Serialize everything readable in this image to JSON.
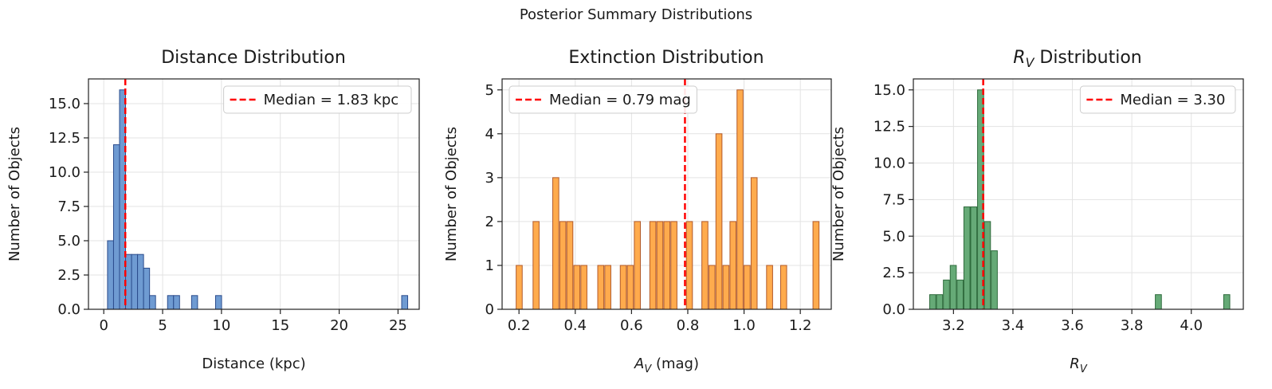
{
  "figure": {
    "title": "Posterior Summary Distributions"
  },
  "chart_data": [
    {
      "type": "bar",
      "title": "Distance Distribution",
      "xlabel": "Distance (kpc)",
      "ylabel": "Number of Objects",
      "xlim": [
        -1.3,
        26.8
      ],
      "ylim": [
        0,
        16.8
      ],
      "xticks": [
        0,
        5,
        10,
        15,
        20,
        25
      ],
      "xtick_labels": [
        "0",
        "5",
        "10",
        "15",
        "20",
        "25"
      ],
      "yticks": [
        0,
        2.5,
        5,
        7.5,
        10,
        12.5,
        15
      ],
      "ytick_labels": [
        "0.0",
        "2.5",
        "5.0",
        "7.5",
        "10.0",
        "12.5",
        "15.0"
      ],
      "bin_width": 0.51,
      "bins": [
        {
          "x": 0.32,
          "count": 5
        },
        {
          "x": 0.83,
          "count": 12
        },
        {
          "x": 1.34,
          "count": 16
        },
        {
          "x": 1.85,
          "count": 4
        },
        {
          "x": 2.36,
          "count": 4
        },
        {
          "x": 2.87,
          "count": 4
        },
        {
          "x": 3.38,
          "count": 3
        },
        {
          "x": 3.89,
          "count": 1
        },
        {
          "x": 5.42,
          "count": 1
        },
        {
          "x": 5.93,
          "count": 1
        },
        {
          "x": 7.46,
          "count": 1
        },
        {
          "x": 9.5,
          "count": 1
        },
        {
          "x": 25.31,
          "count": 1
        }
      ],
      "median": 1.83,
      "legend": "Median = 1.83 kpc",
      "legend_position": "upper right",
      "bar_color": "#6f9bd2",
      "edge_color": "#2b4c8c",
      "grid": true
    },
    {
      "type": "bar",
      "title": "Extinction Distribution",
      "xlabel": "A_V (mag)",
      "xlabel_main": "A",
      "xlabel_sub": "V",
      "xlabel_rest": " (mag)",
      "ylabel": "Number of Objects",
      "xlim": [
        0.14,
        1.31
      ],
      "ylim": [
        0,
        5.25
      ],
      "xticks": [
        0.2,
        0.4,
        0.6,
        0.8,
        1.0,
        1.2
      ],
      "xtick_labels": [
        "0.2",
        "0.4",
        "0.6",
        "0.8",
        "1.0",
        "1.2"
      ],
      "yticks": [
        0,
        1,
        2,
        3,
        4,
        5
      ],
      "ytick_labels": [
        "0",
        "1",
        "2",
        "3",
        "4",
        "5"
      ],
      "bin_width": 0.0215,
      "bins": [
        {
          "x": 0.19,
          "count": 1
        },
        {
          "x": 0.25,
          "count": 2
        },
        {
          "x": 0.32,
          "count": 3
        },
        {
          "x": 0.345,
          "count": 2
        },
        {
          "x": 0.37,
          "count": 2
        },
        {
          "x": 0.395,
          "count": 1
        },
        {
          "x": 0.42,
          "count": 1
        },
        {
          "x": 0.48,
          "count": 1
        },
        {
          "x": 0.505,
          "count": 1
        },
        {
          "x": 0.56,
          "count": 1
        },
        {
          "x": 0.585,
          "count": 1
        },
        {
          "x": 0.61,
          "count": 2
        },
        {
          "x": 0.665,
          "count": 2
        },
        {
          "x": 0.69,
          "count": 2
        },
        {
          "x": 0.715,
          "count": 2
        },
        {
          "x": 0.74,
          "count": 2
        },
        {
          "x": 0.795,
          "count": 2
        },
        {
          "x": 0.85,
          "count": 2
        },
        {
          "x": 0.875,
          "count": 1
        },
        {
          "x": 0.9,
          "count": 4
        },
        {
          "x": 0.925,
          "count": 1
        },
        {
          "x": 0.95,
          "count": 2
        },
        {
          "x": 0.975,
          "count": 5
        },
        {
          "x": 1.0,
          "count": 1
        },
        {
          "x": 1.025,
          "count": 3
        },
        {
          "x": 1.08,
          "count": 1
        },
        {
          "x": 1.13,
          "count": 1
        },
        {
          "x": 1.245,
          "count": 2
        }
      ],
      "median": 0.79,
      "legend": "Median = 0.79 mag",
      "legend_position": "upper left",
      "bar_color": "#ffab4d",
      "edge_color": "#b25a2a",
      "grid": true
    },
    {
      "type": "bar",
      "title": "R_V Distribution",
      "title_main": "R",
      "title_sub": "V",
      "title_rest": " Distribution",
      "xlabel": "R_V",
      "xlabel_main": "R",
      "xlabel_sub": "V",
      "ylabel": "Number of Objects",
      "xlim": [
        3.065,
        4.175
      ],
      "ylim": [
        0,
        15.75
      ],
      "xticks": [
        3.2,
        3.4,
        3.6,
        3.8,
        4.0
      ],
      "xtick_labels": [
        "3.2",
        "3.4",
        "3.6",
        "3.8",
        "4.0"
      ],
      "yticks": [
        0,
        2.5,
        5,
        7.5,
        10,
        12.5,
        15
      ],
      "ytick_labels": [
        "0.0",
        "2.5",
        "5.0",
        "7.5",
        "10.0",
        "12.5",
        "15.0"
      ],
      "bin_width": 0.0205,
      "bins": [
        {
          "x": 3.12,
          "count": 1
        },
        {
          "x": 3.143,
          "count": 1
        },
        {
          "x": 3.166,
          "count": 2
        },
        {
          "x": 3.189,
          "count": 3
        },
        {
          "x": 3.212,
          "count": 2
        },
        {
          "x": 3.235,
          "count": 7
        },
        {
          "x": 3.258,
          "count": 7
        },
        {
          "x": 3.281,
          "count": 15
        },
        {
          "x": 3.304,
          "count": 6
        },
        {
          "x": 3.327,
          "count": 4
        },
        {
          "x": 3.879,
          "count": 1
        },
        {
          "x": 4.109,
          "count": 1
        }
      ],
      "median": 3.3,
      "legend": "Median = 3.30",
      "legend_position": "upper right",
      "bar_color": "#66aa77",
      "edge_color": "#2e6b3c",
      "grid": true
    }
  ],
  "median_line_color": "#ff0000"
}
